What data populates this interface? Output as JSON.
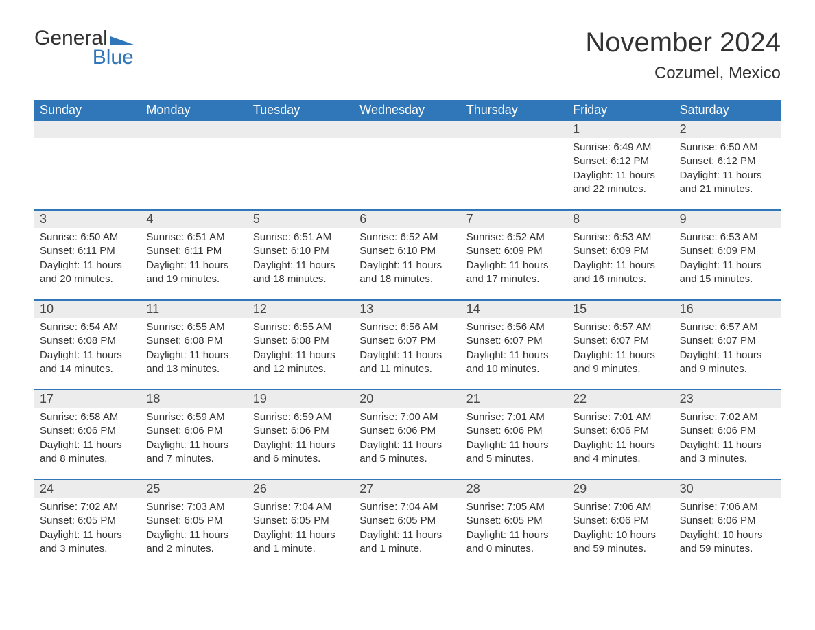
{
  "brand": {
    "line1": "General",
    "line2": "Blue",
    "mark_color": "#2f77b9"
  },
  "title": "November 2024",
  "location": "Cozumel, Mexico",
  "colors": {
    "header_bg": "#2f77b9",
    "header_text": "#ffffff",
    "daynum_bg": "#ececec",
    "week_divider": "#2f77b9",
    "body_text": "#333333",
    "background": "#ffffff"
  },
  "typography": {
    "title_fontsize": 40,
    "location_fontsize": 24,
    "header_fontsize": 18,
    "daynum_fontsize": 18,
    "cell_fontsize": 15
  },
  "layout": {
    "columns": 7,
    "rows": 5
  },
  "weekdays": [
    "Sunday",
    "Monday",
    "Tuesday",
    "Wednesday",
    "Thursday",
    "Friday",
    "Saturday"
  ],
  "weeks": [
    [
      {
        "n": "",
        "sunrise": "",
        "sunset": "",
        "daylight1": "",
        "daylight2": ""
      },
      {
        "n": "",
        "sunrise": "",
        "sunset": "",
        "daylight1": "",
        "daylight2": ""
      },
      {
        "n": "",
        "sunrise": "",
        "sunset": "",
        "daylight1": "",
        "daylight2": ""
      },
      {
        "n": "",
        "sunrise": "",
        "sunset": "",
        "daylight1": "",
        "daylight2": ""
      },
      {
        "n": "",
        "sunrise": "",
        "sunset": "",
        "daylight1": "",
        "daylight2": ""
      },
      {
        "n": "1",
        "sunrise": "Sunrise: 6:49 AM",
        "sunset": "Sunset: 6:12 PM",
        "daylight1": "Daylight: 11 hours",
        "daylight2": "and 22 minutes."
      },
      {
        "n": "2",
        "sunrise": "Sunrise: 6:50 AM",
        "sunset": "Sunset: 6:12 PM",
        "daylight1": "Daylight: 11 hours",
        "daylight2": "and 21 minutes."
      }
    ],
    [
      {
        "n": "3",
        "sunrise": "Sunrise: 6:50 AM",
        "sunset": "Sunset: 6:11 PM",
        "daylight1": "Daylight: 11 hours",
        "daylight2": "and 20 minutes."
      },
      {
        "n": "4",
        "sunrise": "Sunrise: 6:51 AM",
        "sunset": "Sunset: 6:11 PM",
        "daylight1": "Daylight: 11 hours",
        "daylight2": "and 19 minutes."
      },
      {
        "n": "5",
        "sunrise": "Sunrise: 6:51 AM",
        "sunset": "Sunset: 6:10 PM",
        "daylight1": "Daylight: 11 hours",
        "daylight2": "and 18 minutes."
      },
      {
        "n": "6",
        "sunrise": "Sunrise: 6:52 AM",
        "sunset": "Sunset: 6:10 PM",
        "daylight1": "Daylight: 11 hours",
        "daylight2": "and 18 minutes."
      },
      {
        "n": "7",
        "sunrise": "Sunrise: 6:52 AM",
        "sunset": "Sunset: 6:09 PM",
        "daylight1": "Daylight: 11 hours",
        "daylight2": "and 17 minutes."
      },
      {
        "n": "8",
        "sunrise": "Sunrise: 6:53 AM",
        "sunset": "Sunset: 6:09 PM",
        "daylight1": "Daylight: 11 hours",
        "daylight2": "and 16 minutes."
      },
      {
        "n": "9",
        "sunrise": "Sunrise: 6:53 AM",
        "sunset": "Sunset: 6:09 PM",
        "daylight1": "Daylight: 11 hours",
        "daylight2": "and 15 minutes."
      }
    ],
    [
      {
        "n": "10",
        "sunrise": "Sunrise: 6:54 AM",
        "sunset": "Sunset: 6:08 PM",
        "daylight1": "Daylight: 11 hours",
        "daylight2": "and 14 minutes."
      },
      {
        "n": "11",
        "sunrise": "Sunrise: 6:55 AM",
        "sunset": "Sunset: 6:08 PM",
        "daylight1": "Daylight: 11 hours",
        "daylight2": "and 13 minutes."
      },
      {
        "n": "12",
        "sunrise": "Sunrise: 6:55 AM",
        "sunset": "Sunset: 6:08 PM",
        "daylight1": "Daylight: 11 hours",
        "daylight2": "and 12 minutes."
      },
      {
        "n": "13",
        "sunrise": "Sunrise: 6:56 AM",
        "sunset": "Sunset: 6:07 PM",
        "daylight1": "Daylight: 11 hours",
        "daylight2": "and 11 minutes."
      },
      {
        "n": "14",
        "sunrise": "Sunrise: 6:56 AM",
        "sunset": "Sunset: 6:07 PM",
        "daylight1": "Daylight: 11 hours",
        "daylight2": "and 10 minutes."
      },
      {
        "n": "15",
        "sunrise": "Sunrise: 6:57 AM",
        "sunset": "Sunset: 6:07 PM",
        "daylight1": "Daylight: 11 hours",
        "daylight2": "and 9 minutes."
      },
      {
        "n": "16",
        "sunrise": "Sunrise: 6:57 AM",
        "sunset": "Sunset: 6:07 PM",
        "daylight1": "Daylight: 11 hours",
        "daylight2": "and 9 minutes."
      }
    ],
    [
      {
        "n": "17",
        "sunrise": "Sunrise: 6:58 AM",
        "sunset": "Sunset: 6:06 PM",
        "daylight1": "Daylight: 11 hours",
        "daylight2": "and 8 minutes."
      },
      {
        "n": "18",
        "sunrise": "Sunrise: 6:59 AM",
        "sunset": "Sunset: 6:06 PM",
        "daylight1": "Daylight: 11 hours",
        "daylight2": "and 7 minutes."
      },
      {
        "n": "19",
        "sunrise": "Sunrise: 6:59 AM",
        "sunset": "Sunset: 6:06 PM",
        "daylight1": "Daylight: 11 hours",
        "daylight2": "and 6 minutes."
      },
      {
        "n": "20",
        "sunrise": "Sunrise: 7:00 AM",
        "sunset": "Sunset: 6:06 PM",
        "daylight1": "Daylight: 11 hours",
        "daylight2": "and 5 minutes."
      },
      {
        "n": "21",
        "sunrise": "Sunrise: 7:01 AM",
        "sunset": "Sunset: 6:06 PM",
        "daylight1": "Daylight: 11 hours",
        "daylight2": "and 5 minutes."
      },
      {
        "n": "22",
        "sunrise": "Sunrise: 7:01 AM",
        "sunset": "Sunset: 6:06 PM",
        "daylight1": "Daylight: 11 hours",
        "daylight2": "and 4 minutes."
      },
      {
        "n": "23",
        "sunrise": "Sunrise: 7:02 AM",
        "sunset": "Sunset: 6:06 PM",
        "daylight1": "Daylight: 11 hours",
        "daylight2": "and 3 minutes."
      }
    ],
    [
      {
        "n": "24",
        "sunrise": "Sunrise: 7:02 AM",
        "sunset": "Sunset: 6:05 PM",
        "daylight1": "Daylight: 11 hours",
        "daylight2": "and 3 minutes."
      },
      {
        "n": "25",
        "sunrise": "Sunrise: 7:03 AM",
        "sunset": "Sunset: 6:05 PM",
        "daylight1": "Daylight: 11 hours",
        "daylight2": "and 2 minutes."
      },
      {
        "n": "26",
        "sunrise": "Sunrise: 7:04 AM",
        "sunset": "Sunset: 6:05 PM",
        "daylight1": "Daylight: 11 hours",
        "daylight2": "and 1 minute."
      },
      {
        "n": "27",
        "sunrise": "Sunrise: 7:04 AM",
        "sunset": "Sunset: 6:05 PM",
        "daylight1": "Daylight: 11 hours",
        "daylight2": "and 1 minute."
      },
      {
        "n": "28",
        "sunrise": "Sunrise: 7:05 AM",
        "sunset": "Sunset: 6:05 PM",
        "daylight1": "Daylight: 11 hours",
        "daylight2": "and 0 minutes."
      },
      {
        "n": "29",
        "sunrise": "Sunrise: 7:06 AM",
        "sunset": "Sunset: 6:06 PM",
        "daylight1": "Daylight: 10 hours",
        "daylight2": "and 59 minutes."
      },
      {
        "n": "30",
        "sunrise": "Sunrise: 7:06 AM",
        "sunset": "Sunset: 6:06 PM",
        "daylight1": "Daylight: 10 hours",
        "daylight2": "and 59 minutes."
      }
    ]
  ]
}
